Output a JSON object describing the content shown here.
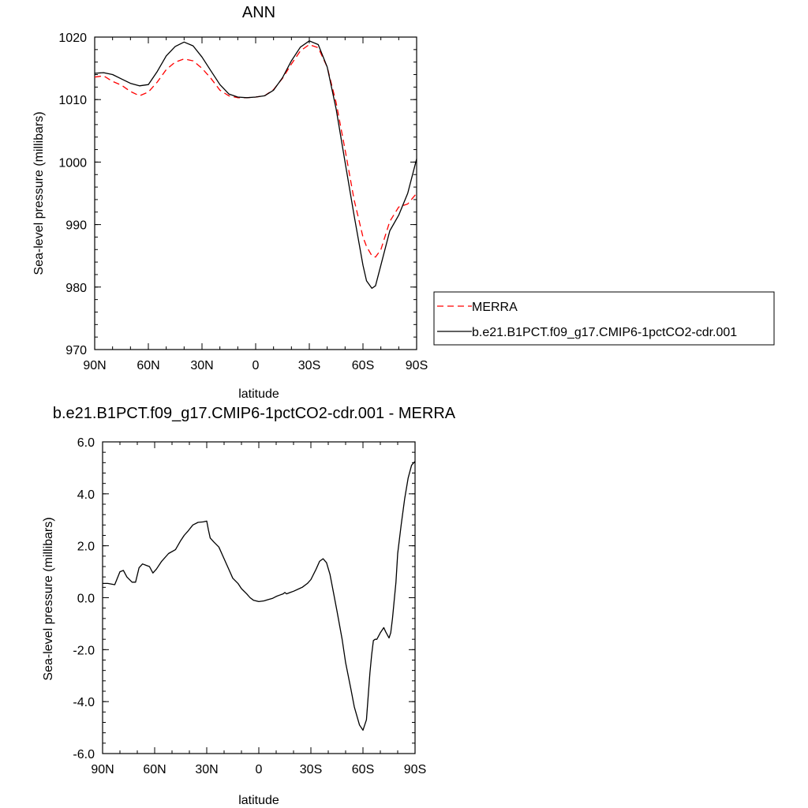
{
  "chart_data": [
    {
      "type": "line",
      "title": "ANN",
      "xlabel": "latitude",
      "ylabel": "Sea-level pressure (millibars)",
      "xlim": [
        90,
        -90
      ],
      "ylim": [
        970,
        1020
      ],
      "x_ticks": [
        90,
        60,
        30,
        0,
        -30,
        -60,
        -90
      ],
      "x_tick_labels": [
        "90N",
        "60N",
        "30N",
        "0",
        "30S",
        "60S",
        "90S"
      ],
      "y_ticks": [
        970,
        980,
        990,
        1000,
        1010,
        1020
      ],
      "y_tick_labels": [
        "970",
        "980",
        "990",
        "1000",
        "1010",
        "1020"
      ],
      "grid": false,
      "legend_placement": "outside-right",
      "series": [
        {
          "name": "MERRA",
          "color": "#ff0000",
          "dash": "dashed",
          "x": [
            90,
            85,
            80,
            75,
            70,
            65,
            60,
            55,
            50,
            45,
            40,
            35,
            30,
            25,
            20,
            15,
            10,
            5,
            0,
            -5,
            -10,
            -15,
            -20,
            -25,
            -30,
            -35,
            -40,
            -45,
            -50,
            -55,
            -60,
            -62,
            -65,
            -67,
            -70,
            -75,
            -80,
            -85,
            -90
          ],
          "y": [
            1013.6,
            1013.8,
            1012.9,
            1012.3,
            1011.3,
            1010.6,
            1011.2,
            1012.8,
            1014.8,
            1016.0,
            1016.5,
            1016.2,
            1015.0,
            1013.4,
            1011.5,
            1010.6,
            1010.3,
            1010.3,
            1010.4,
            1010.6,
            1011.6,
            1013.4,
            1015.7,
            1017.8,
            1018.8,
            1018.3,
            1015.2,
            1009.5,
            1002.0,
            994.0,
            988.0,
            986.5,
            985.0,
            984.8,
            986.0,
            990.5,
            992.8,
            993.3,
            995.0
          ]
        },
        {
          "name": "b.e21.B1PCT.f09_g17.CMIP6-1pctCO2-cdr.001",
          "color": "#000000",
          "dash": "solid",
          "x": [
            90,
            85,
            80,
            75,
            70,
            65,
            60,
            55,
            50,
            45,
            40,
            35,
            30,
            25,
            20,
            15,
            10,
            5,
            0,
            -5,
            -10,
            -15,
            -20,
            -25,
            -30,
            -35,
            -40,
            -45,
            -50,
            -55,
            -60,
            -62,
            -65,
            -67,
            -70,
            -75,
            -80,
            -85,
            -90
          ],
          "y": [
            1014.2,
            1014.3,
            1014.0,
            1013.3,
            1012.6,
            1012.2,
            1012.4,
            1014.5,
            1017.0,
            1018.5,
            1019.2,
            1018.6,
            1016.8,
            1014.6,
            1012.4,
            1010.9,
            1010.4,
            1010.3,
            1010.4,
            1010.6,
            1011.5,
            1013.5,
            1016.2,
            1018.4,
            1019.4,
            1018.8,
            1015.2,
            1008.5,
            1000.0,
            991.5,
            983.5,
            981.0,
            979.8,
            980.2,
            983.5,
            989.0,
            991.5,
            995.0,
            1000.5
          ]
        }
      ]
    },
    {
      "type": "line",
      "title": "b.e21.B1PCT.f09_g17.CMIP6-1pctCO2-cdr.001 - MERRA",
      "xlabel": "latitude",
      "ylabel": "Sea-level pressure (millibars)",
      "xlim": [
        90,
        -90
      ],
      "ylim": [
        -6.0,
        6.0
      ],
      "x_ticks": [
        90,
        60,
        30,
        0,
        -30,
        -60,
        -90
      ],
      "x_tick_labels": [
        "90N",
        "60N",
        "30N",
        "0",
        "30S",
        "60S",
        "90S"
      ],
      "y_ticks": [
        -6,
        -4,
        -2,
        0,
        2,
        4,
        6
      ],
      "y_tick_labels": [
        "-6.0",
        "-4.0",
        "-2.0",
        "0.0",
        "2.0",
        "4.0",
        "6.0"
      ],
      "grid": false,
      "series": [
        {
          "color": "#000000",
          "dash": "solid",
          "x": [
            90,
            87,
            83,
            80,
            78,
            76,
            73,
            71,
            69,
            67,
            65,
            63,
            61,
            59,
            56,
            52,
            48,
            45,
            43,
            41,
            38,
            35,
            32,
            30,
            29,
            28,
            26,
            23,
            20,
            17,
            15,
            12,
            10,
            7,
            5,
            3,
            0,
            -3,
            -5,
            -8,
            -10,
            -12,
            -14,
            -15,
            -16,
            -18,
            -20,
            -25,
            -28,
            -30,
            -33,
            -35,
            -37,
            -39,
            -41,
            -43,
            -45,
            -48,
            -50,
            -53,
            -55,
            -58,
            -60,
            -62,
            -63,
            -64,
            -65,
            -66,
            -67,
            -68,
            -70,
            -72,
            -73,
            -75,
            -76,
            -77,
            -79,
            -80,
            -82,
            -84,
            -86,
            -88,
            -90
          ],
          "y": [
            0.55,
            0.55,
            0.5,
            1.0,
            1.05,
            0.8,
            0.6,
            0.6,
            1.15,
            1.3,
            1.25,
            1.2,
            0.95,
            1.1,
            1.4,
            1.7,
            1.85,
            2.2,
            2.4,
            2.55,
            2.8,
            2.9,
            2.92,
            2.95,
            2.6,
            2.3,
            2.15,
            1.95,
            1.5,
            1.05,
            0.75,
            0.55,
            0.35,
            0.15,
            0.0,
            -0.1,
            -0.15,
            -0.12,
            -0.08,
            -0.02,
            0.05,
            0.1,
            0.15,
            0.2,
            0.15,
            0.2,
            0.25,
            0.4,
            0.55,
            0.7,
            1.1,
            1.4,
            1.5,
            1.35,
            0.9,
            0.2,
            -0.5,
            -1.6,
            -2.5,
            -3.5,
            -4.2,
            -4.9,
            -5.1,
            -4.7,
            -3.8,
            -2.9,
            -2.2,
            -1.65,
            -1.6,
            -1.6,
            -1.35,
            -1.15,
            -1.3,
            -1.55,
            -1.35,
            -0.8,
            0.6,
            1.7,
            2.8,
            3.8,
            4.6,
            5.1,
            5.25
          ]
        }
      ]
    }
  ]
}
